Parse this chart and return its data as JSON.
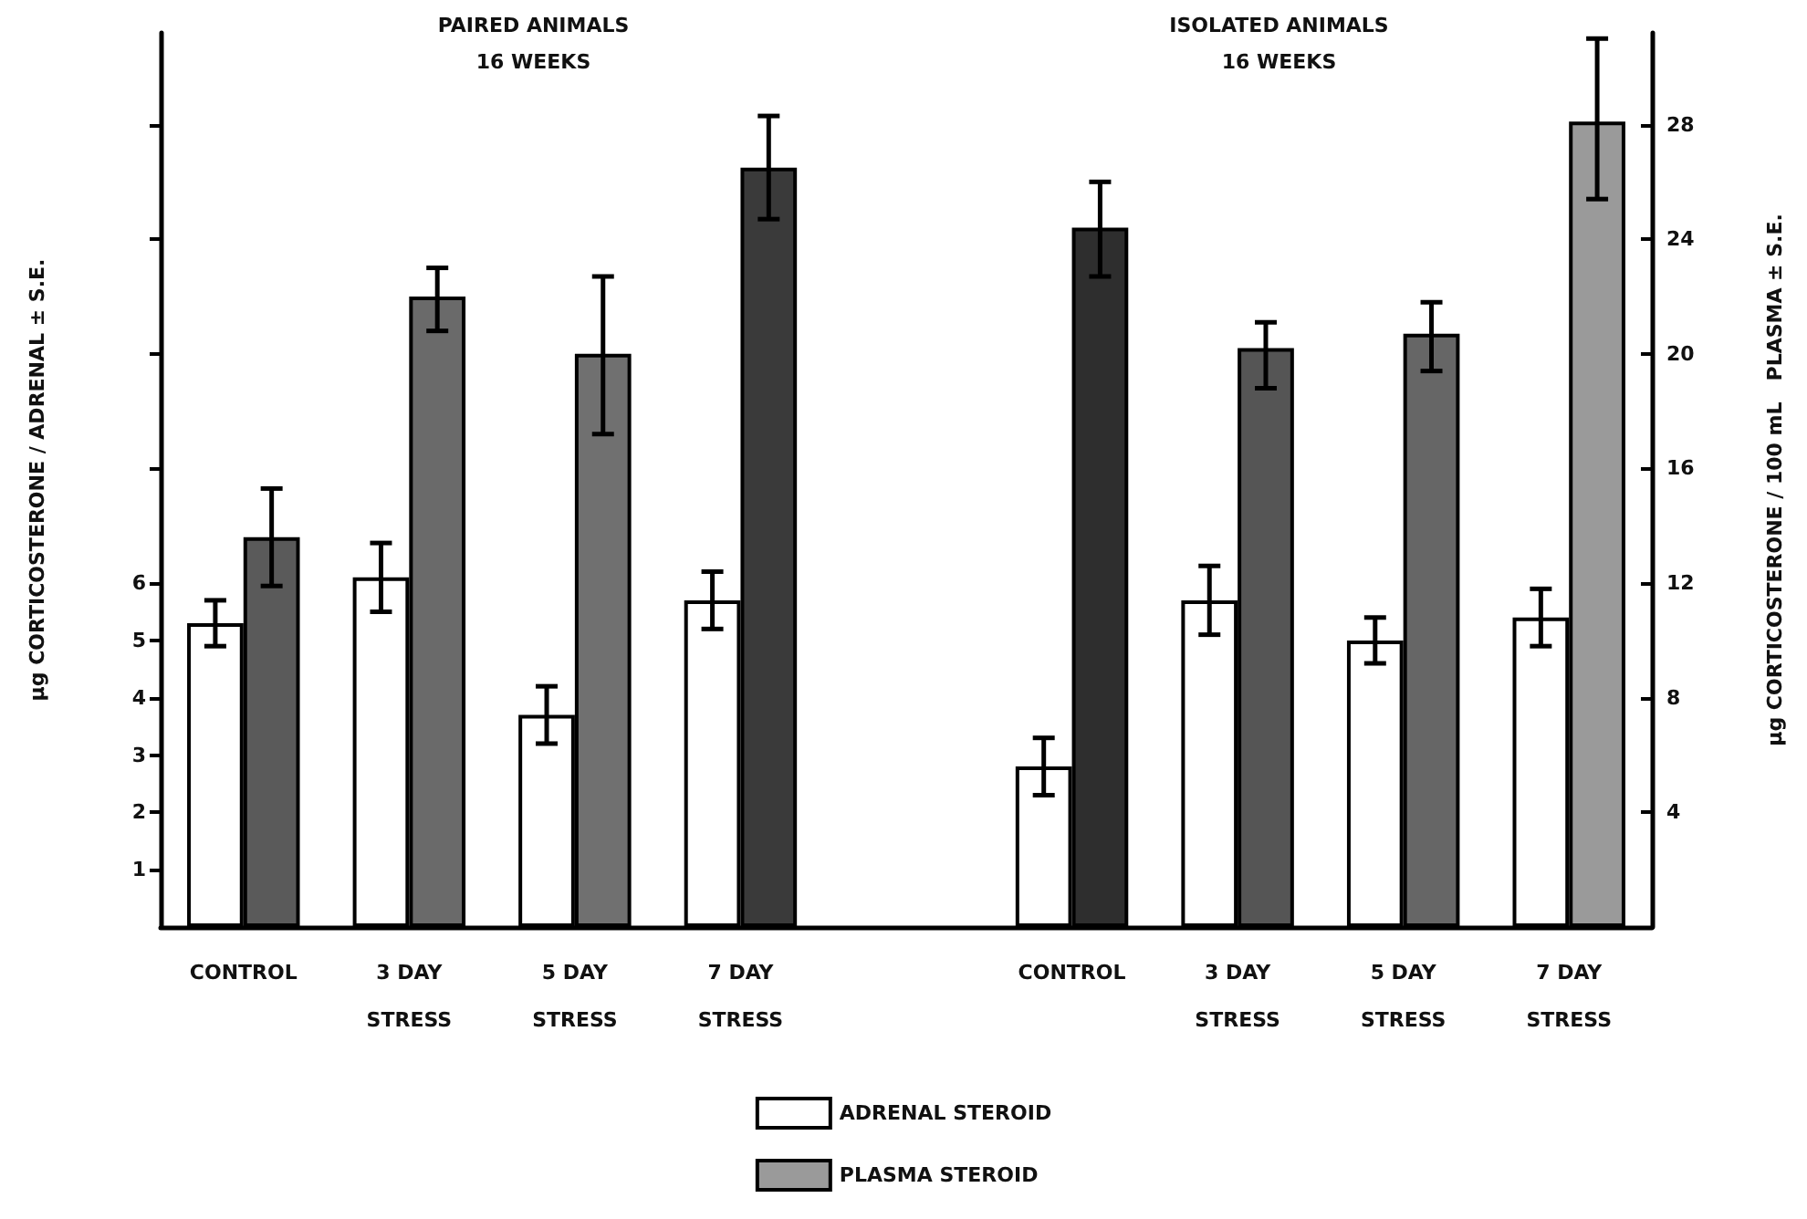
{
  "chart_data": {
    "type": "bar",
    "annotations": [
      "PAIRED ANIMALS\n16 WEEKS",
      "ISOLATED ANIMALS\n16 WEEKS"
    ],
    "categories": [
      "CONTROL",
      "3 DAY\nSTRESS",
      "5 DAY\nSTRESS",
      "7 DAY\nSTRESS",
      null,
      "CONTROL",
      "3 DAY\nSTRESS",
      "5 DAY\nSTRESS",
      "7 DAY\nSTRESS"
    ],
    "ylabel": "μg CORTICOSTERONE / ADRENAL ± S.E.",
    "y2label": "μg CORTICOSTERONE / 100 mL   PLASMA ± S.E.",
    "series": [
      {
        "name": "ADRENAL STEROID",
        "color": "#ffffff",
        "values": [
          5.3,
          6.1,
          3.7,
          5.7,
          null,
          2.8,
          5.7,
          5.0,
          5.4
        ],
        "errors": [
          0.4,
          0.6,
          0.5,
          0.5,
          null,
          0.5,
          0.6,
          0.4,
          0.5
        ]
      },
      {
        "name": "PLASMA STEROID",
        "axis": "y2",
        "color": "#9a9a9a",
        "colors": [
          "#5a5a5a",
          "#6a6a6a",
          "#707070",
          "#3a3a3a",
          null,
          "#2e2e2e",
          "#555555",
          "#666666",
          "#9a9a9a"
        ],
        "values": [
          13.6,
          22.0,
          20.0,
          26.5,
          null,
          24.4,
          20.2,
          20.7,
          28.1
        ],
        "errors": [
          [
            11.9,
            15.3
          ],
          [
            20.8,
            23.0
          ],
          [
            17.2,
            22.7
          ],
          [
            24.7,
            28.3
          ],
          null,
          [
            22.7,
            26.0
          ],
          [
            18.8,
            21.1
          ],
          [
            19.4,
            21.8
          ],
          [
            25.4,
            31.0
          ]
        ]
      }
    ],
    "ylim": [
      0,
      15.6
    ],
    "yticks": [
      1,
      2,
      3,
      4,
      5,
      6,
      {
        "value": 8,
        "label": null
      },
      {
        "value": 10,
        "label": null
      },
      {
        "value": 12,
        "label": null
      },
      {
        "value": 14,
        "label": null
      }
    ],
    "y2lim": [
      0,
      31.2
    ],
    "y2ticks": [
      4,
      8,
      12,
      16,
      20,
      24,
      28
    ],
    "legend": "bottom",
    "grid": false
  }
}
